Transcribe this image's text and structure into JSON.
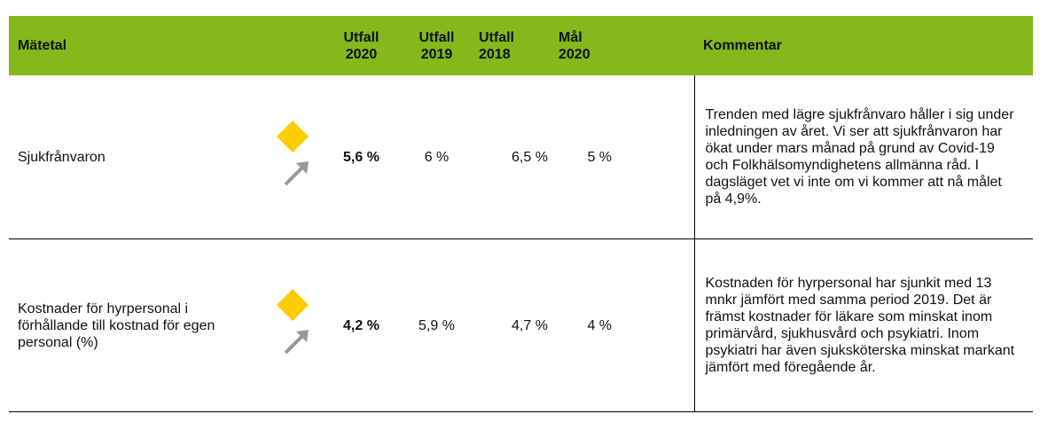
{
  "table": {
    "header": [
      "Mätetal",
      "Utfall 2020",
      "Utfall 2019",
      "Utfall 2018",
      "Mål 2020",
      "Kommentar"
    ],
    "rows": [
      [
        "Sjukfrånvaron",
        "5,6 %",
        "6 %",
        "6,5 %",
        "5 %",
        "Trenden med lägre sjukfrånvaro håller i sig under inledningen av året. Vi ser att sjukfrånvaron har ökat under mars månad på grund av Covid-19 och Folkhälsomyndighetens allmänna råd. I dagsläget vet vi inte om vi kommer att nå målet på 4,9%."
      ],
      [
        "Kostnader för hyrpersonal i förhållande till kostnad för egen personal (%)",
        "4,2 %",
        "5,9 %",
        "4,7 %",
        "4 %",
        "Kostnaden för hyrpersonal har sjunkit med 13 mnkr jämfört med samma period 2019. Det är främst kostnader för läkare som minskat inom primärvård, sjukhusvård och psykiatri. Inom psykiatri har även sjuksköterska minskat markant jämfört med föregående år."
      ]
    ]
  }
}
